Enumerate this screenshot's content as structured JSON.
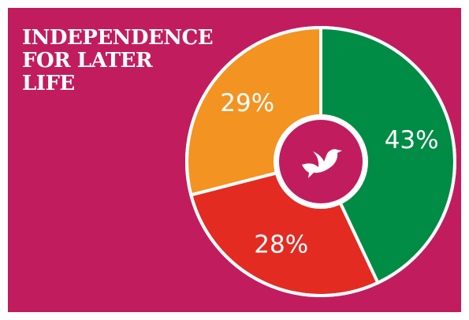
{
  "chart_data": {
    "type": "donut",
    "title": "INDEPENDENCE\nFOR LATER\nLIFE",
    "values": [
      43,
      28,
      29
    ],
    "value_labels": [
      "43%",
      "28%",
      "29%"
    ],
    "colors": [
      "#008c45",
      "#e32b22",
      "#f39322"
    ],
    "background": "#c11d5e"
  }
}
